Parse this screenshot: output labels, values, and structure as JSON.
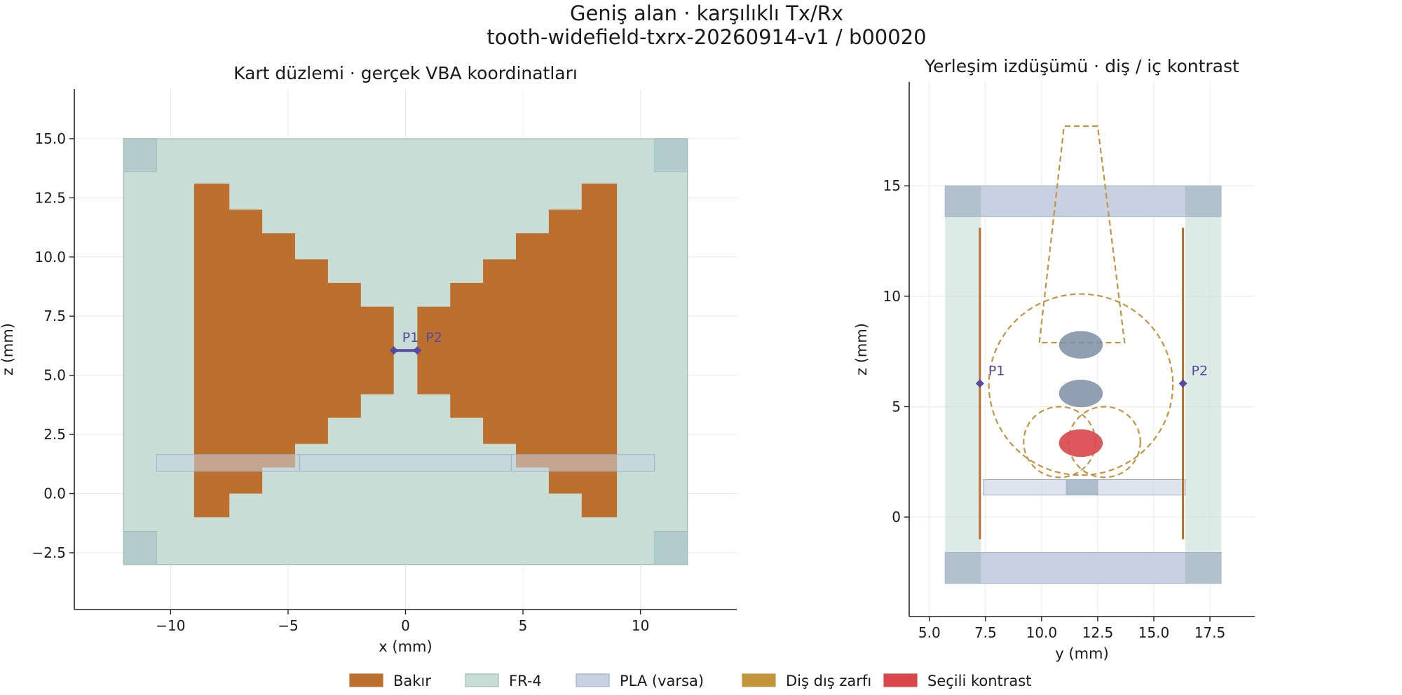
{
  "figure": {
    "title_line1": "Geniş alan · karşılıklı Tx/Rx",
    "title_line2": "tooth-widefield-txrx-20260914-v1 / b00020"
  },
  "colors": {
    "copper": "#bd6f2e",
    "fr4": "#c7ddd5",
    "fr4_edge": "#9dbab0",
    "fr4_corner": "#b2cbcc",
    "pla": "#c8d1e1",
    "pla_edge": "#9fb0c6",
    "envelope": "#c3963e",
    "contrast": "#d9464b",
    "probe": "#5549a2",
    "sphere": "#7d8ea3"
  },
  "legend": [
    {
      "label": "Bakır",
      "color": "#bd6f2e",
      "edge": "#bd6f2e"
    },
    {
      "label": "FR-4",
      "color": "#c7ddd5",
      "edge": "#9dbab0"
    },
    {
      "label": "PLA (varsa)",
      "color": "#c8d1e1",
      "edge": "#9fb0c6"
    },
    {
      "label": "Diş dış zarfı",
      "color": "#c3963e",
      "edge": "#c3963e"
    },
    {
      "label": "Seçili kontrast",
      "color": "#d9464b",
      "edge": "#d9464b"
    }
  ],
  "chart_data": [
    {
      "type": "layout",
      "title": "Kart düzlemi · gerçek VBA koordinatları",
      "xlabel": "x (mm)",
      "ylabel": "z (mm)",
      "xlim": [
        -14.1,
        14.1
      ],
      "ylim": [
        -4.9,
        17.1
      ],
      "xticks": [
        -10,
        -5,
        0,
        5,
        10
      ],
      "xtick_labels": [
        "−10",
        "−5",
        "0",
        "5",
        "10"
      ],
      "yticks": [
        -2.5,
        0,
        2.5,
        5,
        7.5,
        10,
        12.5,
        15
      ],
      "ytick_labels": [
        "−2.5",
        "0.0",
        "2.5",
        "5.0",
        "7.5",
        "10.0",
        "12.5",
        "15.0"
      ],
      "grid": true,
      "fr4_board": [
        -12,
        -3,
        12,
        15
      ],
      "fr4_corners": [
        [
          -12,
          13.6,
          -10.6,
          15
        ],
        [
          10.6,
          13.6,
          12,
          15
        ],
        [
          -12,
          -3,
          -10.6,
          -1.6
        ],
        [
          10.6,
          -3,
          12,
          -1.6
        ]
      ],
      "pla_strips": [
        [
          -10.6,
          0.95,
          -4.5,
          1.65
        ],
        [
          -4.5,
          0.95,
          4.5,
          1.65
        ],
        [
          4.5,
          0.95,
          10.6,
          1.65
        ]
      ],
      "copper_left": [
        [
          -9,
          -1
        ],
        [
          -7.5,
          -1
        ],
        [
          -7.5,
          0
        ],
        [
          -6.1,
          0
        ],
        [
          -6.1,
          1.1
        ],
        [
          -4.7,
          1.1
        ],
        [
          -4.7,
          2.1
        ],
        [
          -3.3,
          2.1
        ],
        [
          -3.3,
          3.2
        ],
        [
          -1.9,
          3.2
        ],
        [
          -1.9,
          4.2
        ],
        [
          -0.5,
          4.2
        ],
        [
          -0.5,
          7.9
        ],
        [
          -1.9,
          7.9
        ],
        [
          -1.9,
          8.9
        ],
        [
          -3.3,
          8.9
        ],
        [
          -3.3,
          9.9
        ],
        [
          -4.7,
          9.9
        ],
        [
          -4.7,
          11
        ],
        [
          -6.1,
          11
        ],
        [
          -6.1,
          12
        ],
        [
          -7.5,
          12
        ],
        [
          -7.5,
          13.1
        ],
        [
          -9,
          13.1
        ]
      ],
      "copper_right": [
        [
          9,
          -1
        ],
        [
          7.5,
          -1
        ],
        [
          7.5,
          0
        ],
        [
          6.1,
          0
        ],
        [
          6.1,
          1.1
        ],
        [
          4.7,
          1.1
        ],
        [
          4.7,
          2.1
        ],
        [
          3.3,
          2.1
        ],
        [
          3.3,
          3.2
        ],
        [
          1.9,
          3.2
        ],
        [
          1.9,
          4.2
        ],
        [
          0.5,
          4.2
        ],
        [
          0.5,
          7.9
        ],
        [
          1.9,
          7.9
        ],
        [
          1.9,
          8.9
        ],
        [
          3.3,
          8.9
        ],
        [
          3.3,
          9.9
        ],
        [
          4.7,
          9.9
        ],
        [
          4.7,
          11
        ],
        [
          6.1,
          11
        ],
        [
          6.1,
          12
        ],
        [
          7.5,
          12
        ],
        [
          7.5,
          13.1
        ],
        [
          9,
          13.1
        ]
      ],
      "ports": [
        {
          "label": "P1",
          "x": -0.5,
          "z": 6.05
        },
        {
          "label": "P2",
          "x": 0.5,
          "z": 6.05
        }
      ]
    },
    {
      "type": "layout",
      "title": "Yerleşim izdüşümü · diş / iç kontrast",
      "xlabel": "y (mm)",
      "ylabel": "z (mm)",
      "xlim": [
        4.1,
        19.5
      ],
      "ylim": [
        -4.5,
        19.7
      ],
      "xticks": [
        5,
        7.5,
        10,
        12.5,
        15,
        17.5
      ],
      "xtick_labels": [
        "5.0",
        "7.5",
        "10.0",
        "12.5",
        "15.0",
        "17.5"
      ],
      "yticks": [
        0,
        5,
        10,
        15
      ],
      "ytick_labels": [
        "0",
        "5",
        "10",
        "15"
      ],
      "grid": true,
      "fr4_columns": [
        [
          5.7,
          -3,
          7.3,
          15
        ],
        [
          16.4,
          -3,
          18,
          15
        ]
      ],
      "pla_bars": [
        [
          5.7,
          13.6,
          18,
          15
        ],
        [
          5.7,
          -3,
          18,
          -1.6
        ]
      ],
      "pla_corners": [
        [
          5.7,
          13.6,
          7.3,
          15
        ],
        [
          16.4,
          13.6,
          18,
          15
        ],
        [
          5.7,
          -3,
          7.3,
          -1.6
        ],
        [
          16.4,
          -3,
          18,
          -1.6
        ]
      ],
      "pla_base": [
        7.4,
        1,
        16.4,
        1.7
      ],
      "pla_base_block": [
        11.1,
        1,
        12.5,
        1.7
      ],
      "copper_traces": [
        {
          "y": 7.25,
          "z1": -1,
          "z2": 13.1
        },
        {
          "y": 16.3,
          "z1": -1,
          "z2": 13.1
        }
      ],
      "tooth_outline": {
        "crown": [
          [
            9.9,
            7.9
          ],
          [
            11.0,
            17.7
          ],
          [
            12.5,
            17.7
          ],
          [
            13.7,
            7.9
          ]
        ],
        "pulp_circle": {
          "cy": 11.75,
          "cz": 6.0,
          "r": 4.1
        },
        "root_left": {
          "cy": 10.8,
          "cz": 3.4,
          "r": 1.6
        },
        "root_right": {
          "cy": 12.8,
          "cz": 3.4,
          "r": 1.6
        }
      },
      "spheres": [
        {
          "y": 11.75,
          "z": 7.8,
          "r": 0.5,
          "selected": false
        },
        {
          "y": 11.75,
          "z": 5.6,
          "r": 0.5,
          "selected": false
        },
        {
          "y": 11.75,
          "z": 3.35,
          "r": 0.5,
          "selected": true
        }
      ],
      "ports": [
        {
          "label": "P1",
          "y": 7.25,
          "z": 6.05
        },
        {
          "label": "P2",
          "y": 16.3,
          "z": 6.05
        }
      ]
    }
  ]
}
